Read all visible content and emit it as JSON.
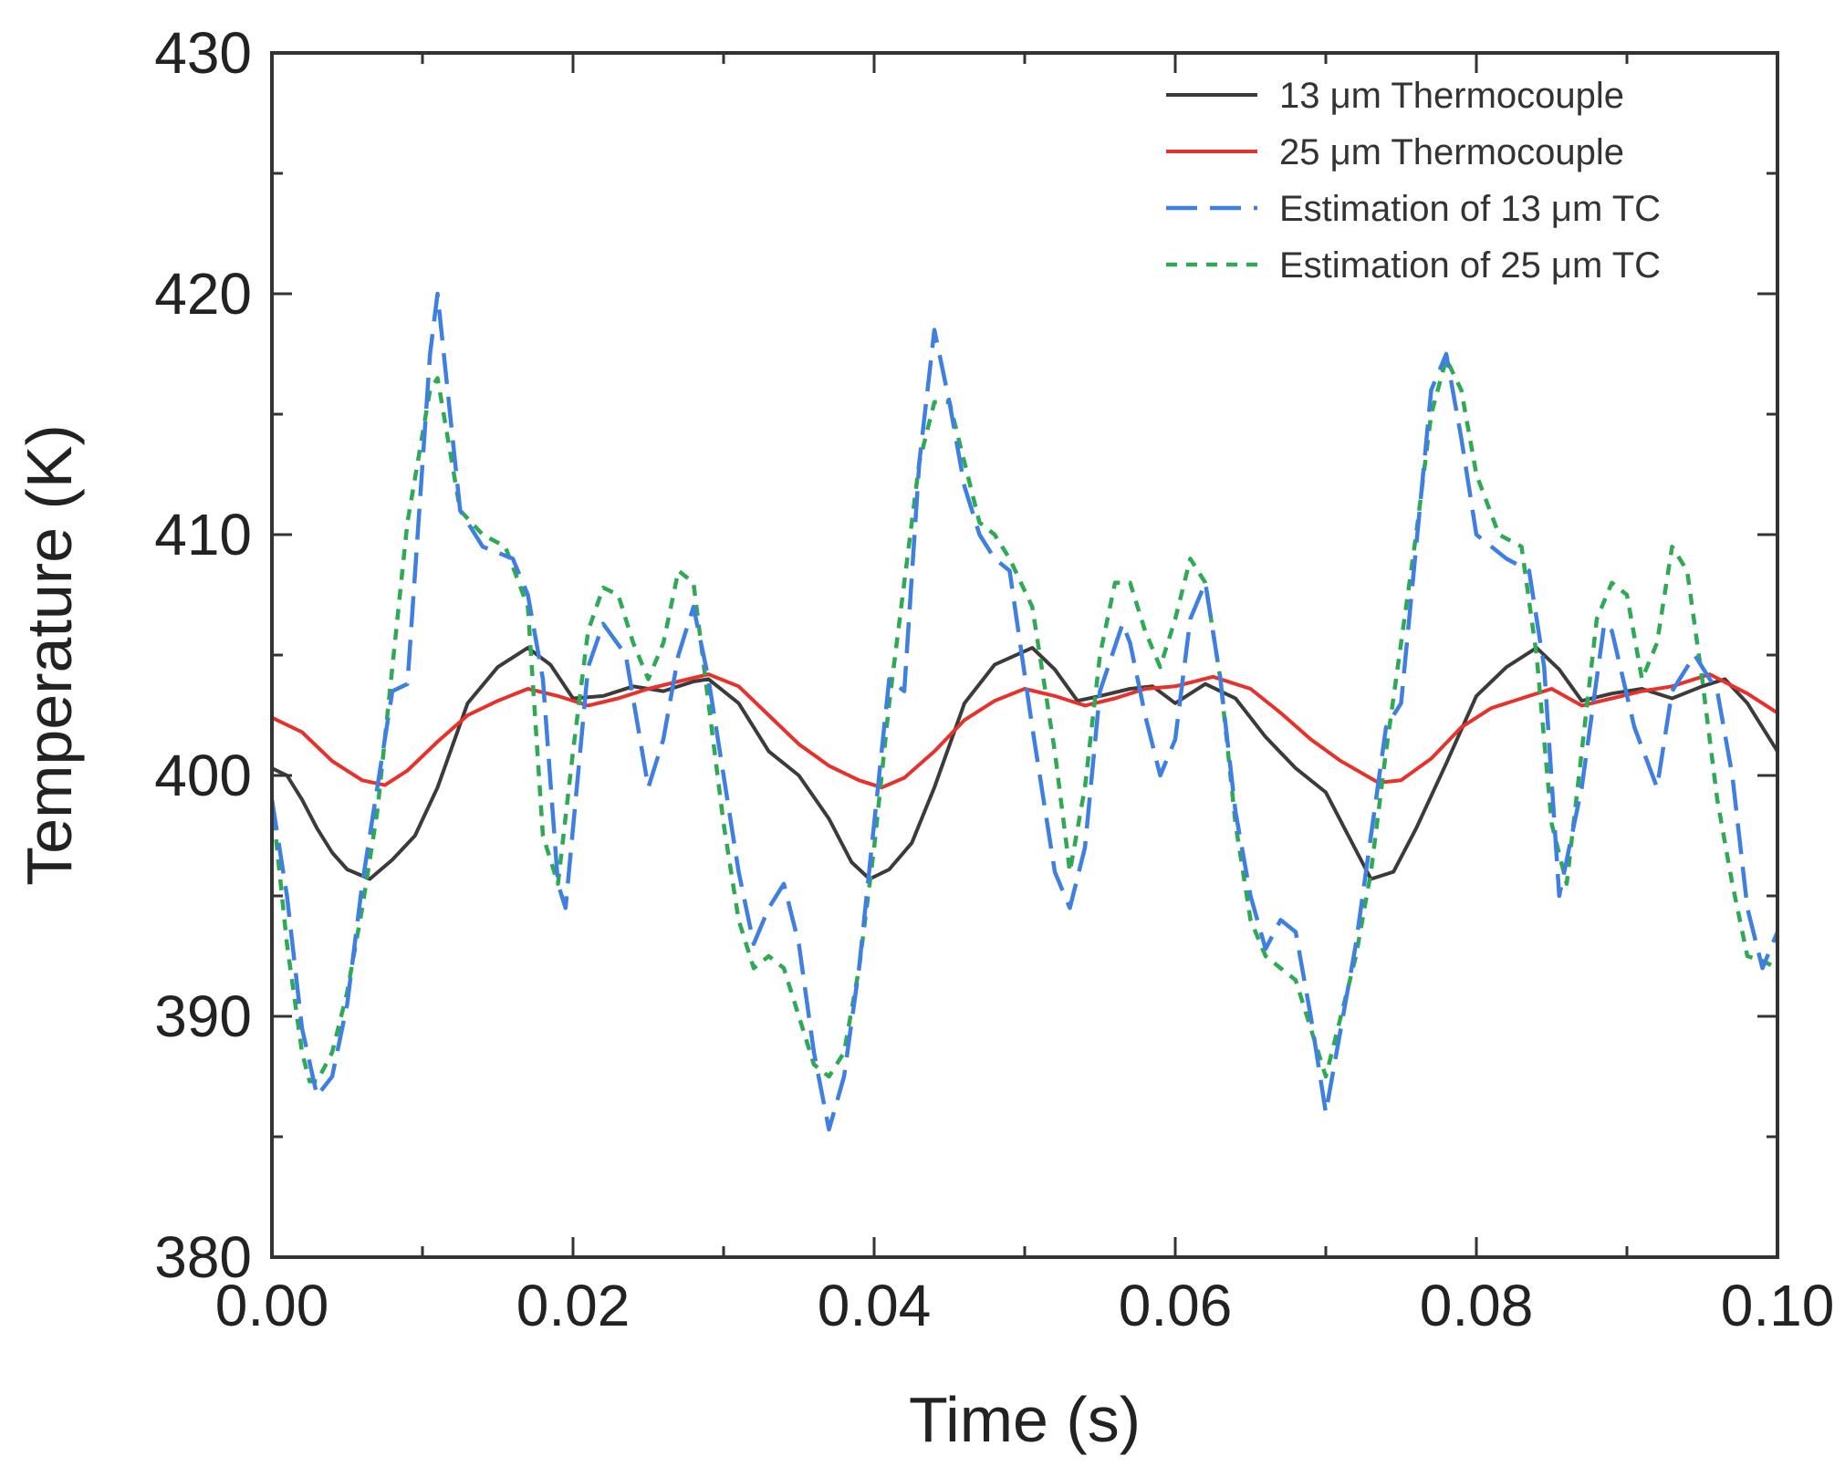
{
  "chart_data": {
    "type": "line",
    "title": "",
    "xlabel": "Time (s)",
    "ylabel": "Temperature (K)",
    "xlim": [
      0,
      0.1
    ],
    "ylim": [
      380,
      430
    ],
    "x_ticks": [
      0.0,
      0.02,
      0.04,
      0.06,
      0.08,
      0.1
    ],
    "x_tick_labels": [
      "0.00",
      "0.02",
      "0.04",
      "0.06",
      "0.08",
      "0.10"
    ],
    "y_ticks": [
      380,
      390,
      400,
      410,
      420,
      430
    ],
    "y_tick_labels": [
      "380",
      "390",
      "400",
      "410",
      "420",
      "430"
    ],
    "grid": false,
    "legend_position": "top-right",
    "series": [
      {
        "name": "13 μm Thermocouple",
        "color": "#3b3b3b",
        "style": "solid",
        "x": [
          0.0,
          0.001,
          0.002,
          0.003,
          0.004,
          0.005,
          0.0065,
          0.008,
          0.0095,
          0.011,
          0.013,
          0.015,
          0.017,
          0.0185,
          0.02,
          0.022,
          0.024,
          0.026,
          0.028,
          0.029,
          0.031,
          0.033,
          0.035,
          0.037,
          0.0385,
          0.0397,
          0.041,
          0.0425,
          0.044,
          0.046,
          0.048,
          0.0505,
          0.052,
          0.0535,
          0.055,
          0.057,
          0.0585,
          0.06,
          0.062,
          0.064,
          0.066,
          0.068,
          0.07,
          0.0715,
          0.073,
          0.0745,
          0.076,
          0.078,
          0.08,
          0.082,
          0.084,
          0.0855,
          0.087,
          0.089,
          0.091,
          0.093,
          0.095,
          0.0965,
          0.098,
          0.1
        ],
        "y": [
          400.3,
          400.0,
          399.0,
          397.8,
          396.8,
          396.1,
          395.7,
          396.5,
          397.5,
          399.5,
          403.0,
          404.5,
          405.3,
          404.6,
          403.2,
          403.3,
          403.7,
          403.5,
          403.9,
          404.0,
          403.0,
          401.0,
          400.0,
          398.2,
          396.4,
          395.7,
          396.1,
          397.2,
          399.5,
          403.0,
          404.6,
          405.3,
          404.4,
          403.1,
          403.3,
          403.6,
          403.7,
          403.0,
          403.8,
          403.2,
          401.6,
          400.3,
          399.3,
          397.5,
          395.7,
          396.0,
          397.8,
          400.5,
          403.3,
          404.5,
          405.3,
          404.4,
          403.1,
          403.4,
          403.6,
          403.2,
          403.7,
          404.0,
          403.0,
          401.0
        ]
      },
      {
        "name": "25 μm Thermocouple",
        "color": "#e8312b",
        "style": "solid",
        "x": [
          0.0,
          0.002,
          0.004,
          0.006,
          0.0075,
          0.009,
          0.011,
          0.013,
          0.015,
          0.017,
          0.019,
          0.021,
          0.023,
          0.025,
          0.027,
          0.029,
          0.031,
          0.033,
          0.035,
          0.037,
          0.039,
          0.0405,
          0.042,
          0.044,
          0.046,
          0.048,
          0.05,
          0.052,
          0.054,
          0.056,
          0.058,
          0.06,
          0.0625,
          0.065,
          0.067,
          0.069,
          0.071,
          0.0735,
          0.075,
          0.077,
          0.079,
          0.081,
          0.083,
          0.085,
          0.087,
          0.089,
          0.091,
          0.093,
          0.0955,
          0.098,
          0.1
        ],
        "y": [
          402.4,
          401.8,
          400.6,
          399.8,
          399.6,
          400.2,
          401.4,
          402.5,
          403.1,
          403.6,
          403.3,
          402.9,
          403.2,
          403.6,
          403.9,
          404.2,
          403.7,
          402.5,
          401.3,
          400.4,
          399.8,
          399.5,
          399.9,
          401.0,
          402.3,
          403.1,
          403.6,
          403.3,
          402.9,
          403.2,
          403.6,
          403.7,
          404.1,
          403.6,
          402.6,
          401.5,
          400.6,
          399.7,
          399.8,
          400.7,
          402.0,
          402.8,
          403.2,
          403.6,
          402.9,
          403.2,
          403.5,
          403.7,
          404.2,
          403.4,
          402.6
        ]
      },
      {
        "name": "Estimation of 13 μm TC",
        "color": "#3f7fe2",
        "style": "dashed",
        "x": [
          0.0,
          0.001,
          0.002,
          0.003,
          0.004,
          0.005,
          0.006,
          0.007,
          0.008,
          0.009,
          0.0105,
          0.011,
          0.0125,
          0.014,
          0.016,
          0.017,
          0.018,
          0.019,
          0.0195,
          0.021,
          0.022,
          0.0235,
          0.025,
          0.026,
          0.027,
          0.028,
          0.029,
          0.031,
          0.032,
          0.033,
          0.034,
          0.035,
          0.036,
          0.037,
          0.038,
          0.039,
          0.04,
          0.041,
          0.042,
          0.043,
          0.044,
          0.045,
          0.046,
          0.047,
          0.048,
          0.049,
          0.0505,
          0.052,
          0.053,
          0.054,
          0.055,
          0.0565,
          0.057,
          0.058,
          0.059,
          0.06,
          0.061,
          0.062,
          0.063,
          0.064,
          0.065,
          0.066,
          0.067,
          0.068,
          0.069,
          0.07,
          0.071,
          0.072,
          0.073,
          0.074,
          0.075,
          0.076,
          0.077,
          0.078,
          0.079,
          0.08,
          0.082,
          0.0835,
          0.0845,
          0.0855,
          0.087,
          0.0885,
          0.089,
          0.0905,
          0.092,
          0.093,
          0.0945,
          0.096,
          0.097,
          0.098,
          0.099,
          0.1
        ],
        "y": [
          399.0,
          395.0,
          389.5,
          386.7,
          387.5,
          390.5,
          395.5,
          399.5,
          403.5,
          403.8,
          417.5,
          420.0,
          411.0,
          409.5,
          409.0,
          407.5,
          404.0,
          395.5,
          394.5,
          404.5,
          406.3,
          405.0,
          399.5,
          401.5,
          405.0,
          407.0,
          404.0,
          396.0,
          393.0,
          394.5,
          395.5,
          393.0,
          388.5,
          385.3,
          387.5,
          392.0,
          398.0,
          404.0,
          403.5,
          413.0,
          418.5,
          415.5,
          412.0,
          410.0,
          409.0,
          408.5,
          402.0,
          396.0,
          394.5,
          397.0,
          403.5,
          406.3,
          405.5,
          402.5,
          400.0,
          401.5,
          406.5,
          408.0,
          404.0,
          398.5,
          395.0,
          392.8,
          394.0,
          393.5,
          390.0,
          386.0,
          389.5,
          393.0,
          397.5,
          402.0,
          403.0,
          409.5,
          416.0,
          417.5,
          414.0,
          410.0,
          409.0,
          408.5,
          404.5,
          395.0,
          399.5,
          406.3,
          406.0,
          402.0,
          399.5,
          403.5,
          405.0,
          403.5,
          400.0,
          394.5,
          392.0,
          393.5
        ]
      },
      {
        "name": "Estimation of 25 μm TC",
        "color": "#2eaa54",
        "style": "dotted",
        "x": [
          0.0,
          0.001,
          0.002,
          0.0025,
          0.003,
          0.004,
          0.005,
          0.006,
          0.007,
          0.008,
          0.009,
          0.0105,
          0.011,
          0.0125,
          0.014,
          0.0155,
          0.017,
          0.018,
          0.019,
          0.02,
          0.021,
          0.022,
          0.023,
          0.024,
          0.025,
          0.026,
          0.027,
          0.028,
          0.029,
          0.03,
          0.031,
          0.032,
          0.033,
          0.034,
          0.035,
          0.036,
          0.037,
          0.038,
          0.039,
          0.04,
          0.041,
          0.042,
          0.043,
          0.044,
          0.045,
          0.046,
          0.047,
          0.048,
          0.049,
          0.0505,
          0.052,
          0.053,
          0.054,
          0.055,
          0.056,
          0.057,
          0.058,
          0.059,
          0.06,
          0.061,
          0.062,
          0.063,
          0.064,
          0.065,
          0.066,
          0.067,
          0.068,
          0.069,
          0.07,
          0.071,
          0.072,
          0.073,
          0.074,
          0.075,
          0.076,
          0.077,
          0.078,
          0.079,
          0.08,
          0.0815,
          0.083,
          0.084,
          0.085,
          0.086,
          0.087,
          0.088,
          0.089,
          0.09,
          0.091,
          0.092,
          0.093,
          0.094,
          0.095,
          0.096,
          0.097,
          0.098,
          0.099,
          0.1
        ],
        "y": [
          399.0,
          393.0,
          388.5,
          387.3,
          387.3,
          388.5,
          391.0,
          394.5,
          398.5,
          404.5,
          410.5,
          416.0,
          416.5,
          411.0,
          410.0,
          409.5,
          407.0,
          397.5,
          395.5,
          401.0,
          406.0,
          407.8,
          407.5,
          405.5,
          404.0,
          405.5,
          408.5,
          408.0,
          403.0,
          398.0,
          394.0,
          392.0,
          392.5,
          392.0,
          390.0,
          388.0,
          387.5,
          388.5,
          392.0,
          397.0,
          403.0,
          408.0,
          413.0,
          415.5,
          415.5,
          413.0,
          410.5,
          410.0,
          409.0,
          407.0,
          401.0,
          396.0,
          399.5,
          405.0,
          408.0,
          408.0,
          406.0,
          404.5,
          406.5,
          409.0,
          408.0,
          404.0,
          398.0,
          394.0,
          392.5,
          392.0,
          391.5,
          389.5,
          387.5,
          390.0,
          392.5,
          396.0,
          401.0,
          405.5,
          410.0,
          415.0,
          417.3,
          416.0,
          412.5,
          410.0,
          409.5,
          405.0,
          398.0,
          395.5,
          401.0,
          406.5,
          408.0,
          407.5,
          404.0,
          405.5,
          409.5,
          408.5,
          404.0,
          399.0,
          395.5,
          392.5,
          392.3,
          392.0
        ]
      }
    ]
  }
}
